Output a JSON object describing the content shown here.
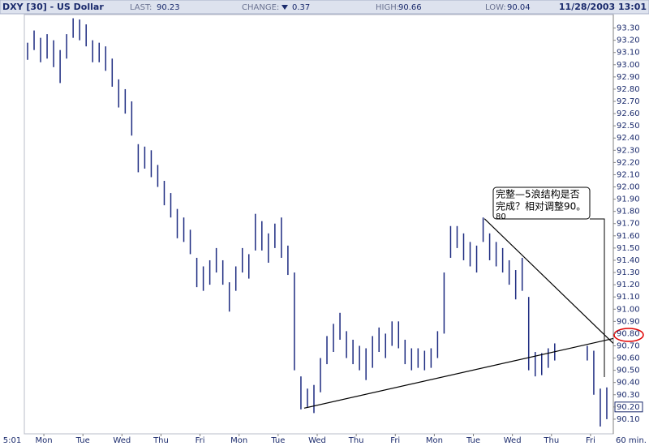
{
  "chart_data": {
    "type": "hlc",
    "header": {
      "symbol": "DXY [30] - US Dollar",
      "last_label": "LAST:",
      "last": 90.23,
      "change_label": "CHANGE:",
      "change": 0.37,
      "high_label": "HIGH:",
      "high": 90.66,
      "low_label": "LOW:",
      "low": 90.04,
      "timestamp": "11/28/2003 13:01"
    },
    "x_start_label": "5:01",
    "interval_label": "60 min.",
    "xlim": [
      0,
      181
    ],
    "xticks": [
      {
        "value": 6,
        "label": "Mon"
      },
      {
        "value": 18,
        "label": "Tue"
      },
      {
        "value": 30,
        "label": "Wed"
      },
      {
        "value": 42,
        "label": "Thu"
      },
      {
        "value": 54,
        "label": "Fri"
      },
      {
        "value": 66,
        "label": "Mon"
      },
      {
        "value": 78,
        "label": "Tue"
      },
      {
        "value": 90,
        "label": "Wed"
      },
      {
        "value": 102,
        "label": "Thu"
      },
      {
        "value": 114,
        "label": "Fri"
      },
      {
        "value": 126,
        "label": "Mon"
      },
      {
        "value": 138,
        "label": "Tue"
      },
      {
        "value": 150,
        "label": "Wed"
      },
      {
        "value": 162,
        "label": "Thu"
      },
      {
        "value": 174,
        "label": "Fri"
      }
    ],
    "ylim": [
      89.98,
      93.41
    ],
    "yticks": [
      {
        "value": 90.1,
        "label": "90.10"
      },
      {
        "value": 90.2,
        "label": "90.20"
      },
      {
        "value": 90.3,
        "label": "90.30"
      },
      {
        "value": 90.4,
        "label": "90.40"
      },
      {
        "value": 90.5,
        "label": "90.50"
      },
      {
        "value": 90.6,
        "label": "90.60"
      },
      {
        "value": 90.7,
        "label": "90.70"
      },
      {
        "value": 90.8,
        "label": "90.80"
      },
      {
        "value": 90.9,
        "label": "90.90"
      },
      {
        "value": 91.0,
        "label": "91.00"
      },
      {
        "value": 91.1,
        "label": "91.10"
      },
      {
        "value": 91.2,
        "label": "91.20"
      },
      {
        "value": 91.3,
        "label": "91.30"
      },
      {
        "value": 91.4,
        "label": "91.40"
      },
      {
        "value": 91.5,
        "label": "91.50"
      },
      {
        "value": 91.6,
        "label": "91.60"
      },
      {
        "value": 91.7,
        "label": "91.70"
      },
      {
        "value": 91.8,
        "label": "91.80"
      },
      {
        "value": 91.9,
        "label": "91.90"
      },
      {
        "value": 92.0,
        "label": "92.00"
      },
      {
        "value": 92.1,
        "label": "92.10"
      },
      {
        "value": 92.2,
        "label": "92.20"
      },
      {
        "value": 92.3,
        "label": "92.30"
      },
      {
        "value": 92.4,
        "label": "92.40"
      },
      {
        "value": 92.5,
        "label": "92.50"
      },
      {
        "value": 92.6,
        "label": "92.60"
      },
      {
        "value": 92.7,
        "label": "92.70"
      },
      {
        "value": 92.8,
        "label": "92.80"
      },
      {
        "value": 92.9,
        "label": "92.90"
      },
      {
        "value": 93.0,
        "label": "93.00"
      },
      {
        "value": 93.1,
        "label": "93.10"
      },
      {
        "value": 93.2,
        "label": "93.20"
      },
      {
        "value": 93.3,
        "label": "93.30"
      }
    ],
    "series": [
      {
        "color": "#1c2a80",
        "x": [
          1,
          3,
          5,
          7,
          9,
          11,
          13,
          15,
          17,
          19,
          21,
          23,
          25,
          27,
          29,
          31,
          33,
          35,
          37,
          39,
          41,
          43,
          45,
          47,
          49,
          51,
          53,
          55,
          57,
          59,
          61,
          63,
          65,
          67,
          69,
          71,
          73,
          75,
          77,
          79,
          81,
          83,
          85,
          87,
          89,
          91,
          93,
          95,
          97,
          99,
          101,
          103,
          105,
          107,
          109,
          111,
          113,
          115,
          117,
          119,
          121,
          123,
          125,
          127,
          129,
          131,
          133,
          135,
          137,
          139,
          141,
          143,
          145,
          147,
          149,
          151,
          153,
          155,
          157,
          159,
          161,
          163,
          173,
          175,
          177,
          179
        ],
        "high": [
          93.18,
          93.28,
          93.22,
          93.25,
          93.2,
          93.12,
          93.25,
          93.38,
          93.37,
          93.33,
          93.2,
          93.18,
          93.15,
          93.05,
          92.88,
          92.8,
          92.7,
          92.35,
          92.33,
          92.3,
          92.18,
          92.05,
          91.95,
          91.82,
          91.75,
          91.65,
          91.42,
          91.35,
          91.4,
          91.5,
          91.4,
          91.22,
          91.35,
          91.5,
          91.45,
          91.78,
          91.72,
          91.62,
          91.7,
          91.75,
          91.52,
          91.3,
          90.45,
          90.35,
          90.38,
          90.6,
          90.78,
          90.88,
          90.97,
          90.82,
          90.75,
          90.7,
          90.68,
          90.78,
          90.85,
          90.8,
          90.9,
          90.9,
          90.75,
          90.68,
          90.68,
          90.66,
          90.68,
          90.82,
          91.3,
          91.68,
          91.68,
          91.62,
          91.55,
          91.52,
          91.75,
          91.62,
          91.55,
          91.5,
          91.4,
          91.32,
          91.42,
          91.1,
          90.65,
          90.64,
          90.68,
          90.72,
          90.7,
          90.66,
          90.35,
          90.36
        ],
        "low": [
          93.04,
          93.12,
          93.02,
          93.05,
          92.98,
          92.85,
          93.05,
          93.22,
          93.2,
          93.15,
          93.02,
          93.02,
          92.95,
          92.82,
          92.65,
          92.6,
          92.42,
          92.12,
          92.15,
          92.08,
          92.0,
          91.85,
          91.75,
          91.58,
          91.55,
          91.45,
          91.18,
          91.15,
          91.2,
          91.3,
          91.2,
          90.98,
          91.15,
          91.3,
          91.25,
          91.48,
          91.48,
          91.38,
          91.5,
          91.42,
          91.28,
          90.5,
          90.18,
          90.2,
          90.15,
          90.32,
          90.55,
          90.65,
          90.75,
          90.6,
          90.55,
          90.5,
          90.42,
          90.52,
          90.65,
          90.6,
          90.7,
          90.68,
          90.55,
          90.5,
          90.52,
          90.5,
          90.52,
          90.6,
          90.8,
          91.42,
          91.5,
          91.4,
          91.35,
          91.3,
          91.55,
          91.4,
          91.35,
          91.3,
          91.2,
          91.08,
          91.15,
          90.5,
          90.45,
          90.46,
          90.52,
          90.58,
          90.58,
          90.3,
          90.04,
          90.1
        ]
      }
    ],
    "trendlines": [
      {
        "color": "#000000",
        "x": [
          86,
          181
        ],
        "y": [
          90.19,
          90.76
        ]
      },
      {
        "color": "#000000",
        "x": [
          141.4,
          181
        ],
        "y": [
          91.74,
          90.72
        ]
      }
    ],
    "annotation": {
      "lines": [
        "完整—5浪结构是否",
        "完成？相对调整90。",
        "80"
      ]
    }
  }
}
